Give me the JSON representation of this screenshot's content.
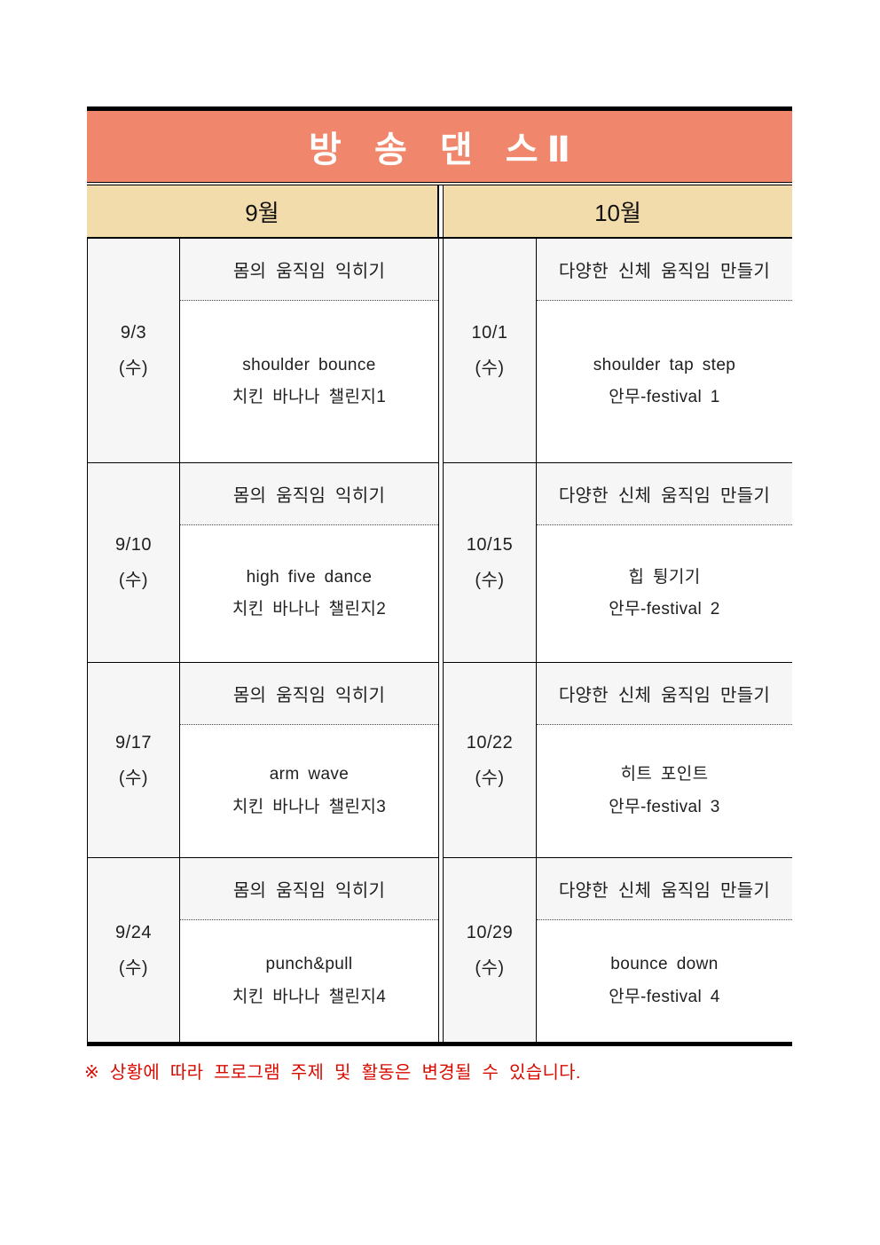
{
  "title": "방 송 댄 스Ⅱ",
  "months": {
    "left": "9월",
    "right": "10월"
  },
  "rows": [
    {
      "left": {
        "date": "9/3",
        "day": "(수)",
        "topic": "몸의 움직임 익히기",
        "lines": [
          "shoulder bounce",
          "치킨 바나나 챌린지1"
        ]
      },
      "right": {
        "date": "10/1",
        "day": "(수)",
        "topic": "다양한 신체 움직임 만들기",
        "lines": [
          "shoulder tap step",
          "안무-festival 1"
        ]
      }
    },
    {
      "left": {
        "date": "9/10",
        "day": "(수)",
        "topic": "몸의 움직임 익히기",
        "lines": [
          "high five dance",
          "치킨 바나나 챌린지2"
        ]
      },
      "right": {
        "date": "10/15",
        "day": "(수)",
        "topic": "다양한 신체 움직임 만들기",
        "lines": [
          "힙 튕기기",
          "안무-festival 2"
        ]
      }
    },
    {
      "left": {
        "date": "9/17",
        "day": "(수)",
        "topic": "몸의 움직임 익히기",
        "lines": [
          "arm wave",
          "치킨 바나나 챌린지3"
        ]
      },
      "right": {
        "date": "10/22",
        "day": "(수)",
        "topic": "다양한 신체 움직임 만들기",
        "lines": [
          "히트 포인트",
          "안무-festival 3"
        ]
      }
    },
    {
      "left": {
        "date": "9/24",
        "day": "(수)",
        "topic": "몸의 움직임 익히기",
        "lines": [
          "punch&pull",
          "치킨 바나나 챌린지4"
        ]
      },
      "right": {
        "date": "10/29",
        "day": "(수)",
        "topic": "다양한 신체 움직임 만들기",
        "lines": [
          "bounce down",
          "안무-festival 4"
        ]
      }
    }
  ],
  "footnote": "※ 상황에 따라 프로그램 주제 및 활동은 변경될 수 있습니다.",
  "colors": {
    "title_bg": "#F0876C",
    "title_text": "#FFFFFF",
    "header_bg": "#F2DCAB",
    "cell_gray": "#F6F6F6",
    "footnote_red": "#D90B00",
    "border_black": "#000000"
  }
}
